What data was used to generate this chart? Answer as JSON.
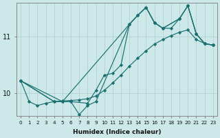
{
  "title": "",
  "xlabel": "Humidex (Indice chaleur)",
  "ylabel": "",
  "background_color": "#cce8e8",
  "grid_color": "#b8d4d4",
  "line_color": "#1a7070",
  "xlim": [
    -0.5,
    23.5
  ],
  "ylim": [
    9.6,
    11.6
  ],
  "yticks": [
    10,
    11
  ],
  "xticks": [
    0,
    1,
    2,
    3,
    4,
    5,
    6,
    7,
    8,
    9,
    10,
    11,
    12,
    13,
    14,
    15,
    16,
    17,
    18,
    19,
    20,
    21,
    22,
    23
  ],
  "series": [
    {
      "x": [
        0,
        1,
        2,
        3,
        4,
        5,
        6,
        7,
        8,
        9,
        10,
        11,
        12,
        13,
        14,
        15,
        16,
        17,
        18,
        19,
        20,
        21,
        22,
        23
      ],
      "y": [
        10.22,
        9.85,
        9.78,
        9.82,
        9.85,
        9.86,
        9.87,
        9.88,
        9.9,
        9.95,
        10.05,
        10.18,
        10.32,
        10.48,
        10.62,
        10.75,
        10.87,
        10.95,
        11.02,
        11.08,
        11.12,
        10.95,
        10.88,
        10.85
      ]
    },
    {
      "x": [
        0,
        4,
        5,
        13,
        14,
        15,
        16,
        17,
        19,
        20,
        21,
        22,
        23
      ],
      "y": [
        10.22,
        9.85,
        9.85,
        11.22,
        11.38,
        11.52,
        11.25,
        11.15,
        11.32,
        11.55,
        11.05,
        10.88,
        10.85
      ]
    },
    {
      "x": [
        0,
        4,
        5,
        6,
        7,
        8,
        9,
        13,
        14,
        15,
        16,
        17,
        19,
        20,
        21,
        22,
        23
      ],
      "y": [
        10.22,
        9.85,
        9.85,
        9.85,
        9.62,
        9.78,
        9.85,
        11.22,
        11.38,
        11.52,
        11.25,
        11.15,
        11.32,
        11.55,
        11.05,
        10.88,
        10.85
      ]
    },
    {
      "x": [
        0,
        5,
        6,
        8,
        9,
        10,
        11,
        12,
        13,
        14,
        15,
        16,
        17,
        18,
        19,
        20,
        21,
        22,
        23
      ],
      "y": [
        10.22,
        9.85,
        9.85,
        9.82,
        10.05,
        10.32,
        10.35,
        10.5,
        11.22,
        11.38,
        11.52,
        11.25,
        11.15,
        11.15,
        11.32,
        11.55,
        11.05,
        10.88,
        10.85
      ]
    }
  ]
}
